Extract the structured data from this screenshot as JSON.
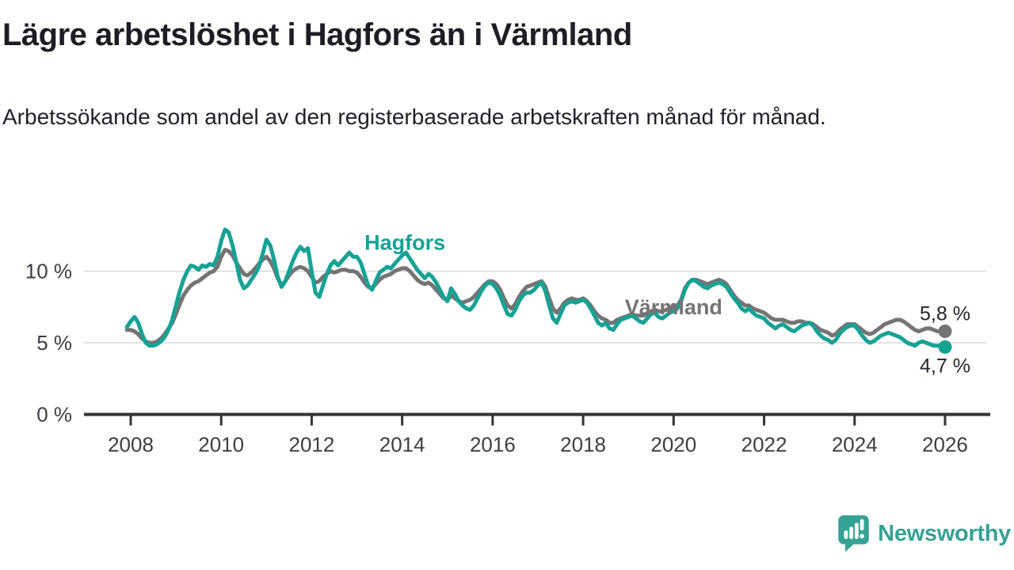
{
  "header": {
    "title": "Lägre arbetslöshet i Hagfors än i Värmland",
    "subtitle": "Arbetssökande som andel av den registerbaserade arbetskraften månad för månad."
  },
  "chart_data": {
    "type": "line",
    "title": "Lägre arbetslöshet i Hagfors än i Värmland",
    "xlabel": "",
    "ylabel": "",
    "x_unit": "monthly",
    "x_start": 2007.9167,
    "x_range": [
      2007.9167,
      2026.0
    ],
    "ylim": [
      0,
      13.5
    ],
    "grid": "horizontal",
    "legend_position": "inline-labels",
    "x_ticks": [
      2008,
      2010,
      2012,
      2014,
      2016,
      2018,
      2020,
      2022,
      2024,
      2026
    ],
    "y_ticks": [
      {
        "value": 0,
        "label": "0 %"
      },
      {
        "value": 5,
        "label": "5 %"
      },
      {
        "value": 10,
        "label": "10 %"
      }
    ],
    "series": [
      {
        "name": "Värmland",
        "color": "#747474",
        "end_label": "5,8 %",
        "end_label_position": "above",
        "values": [
          5.9,
          5.9,
          5.8,
          5.6,
          5.3,
          5.1,
          5.0,
          5.0,
          5.1,
          5.3,
          5.6,
          6.0,
          6.4,
          7.0,
          7.7,
          8.3,
          8.7,
          9.0,
          9.2,
          9.3,
          9.5,
          9.7,
          9.9,
          10.0,
          10.3,
          11.0,
          11.5,
          11.4,
          11.1,
          10.6,
          10.2,
          9.8,
          9.7,
          9.9,
          10.2,
          10.5,
          10.8,
          11.0,
          10.7,
          10.2,
          9.5,
          9.0,
          9.3,
          9.7,
          10.0,
          10.2,
          10.3,
          10.2,
          10.0,
          9.6,
          9.2,
          9.3,
          9.6,
          9.8,
          10.0,
          9.9,
          10.0,
          10.1,
          10.1,
          10.0,
          10.0,
          9.9,
          9.6,
          9.2,
          8.9,
          8.8,
          9.1,
          9.4,
          9.6,
          9.7,
          9.8,
          10.0,
          10.1,
          10.2,
          10.2,
          10.0,
          9.7,
          9.4,
          9.2,
          9.1,
          9.2,
          9.0,
          8.7,
          8.4,
          8.1,
          8.0,
          8.3,
          8.1,
          7.9,
          7.8,
          7.9,
          8.0,
          8.2,
          8.5,
          8.8,
          9.1,
          9.3,
          9.3,
          9.1,
          8.7,
          8.1,
          7.6,
          7.4,
          7.7,
          8.2,
          8.6,
          8.9,
          9.0,
          9.1,
          9.2,
          9.3,
          8.9,
          8.1,
          7.4,
          7.1,
          7.4,
          7.8,
          8.0,
          8.1,
          8.0,
          8.0,
          8.1,
          7.9,
          7.6,
          7.2,
          6.9,
          6.7,
          6.6,
          6.4,
          6.4,
          6.6,
          6.7,
          6.8,
          6.9,
          7.0,
          6.9,
          6.9,
          6.9,
          7.0,
          7.2,
          7.3,
          7.2,
          7.2,
          7.3,
          7.4,
          7.5,
          7.6,
          8.0,
          8.8,
          9.2,
          9.4,
          9.4,
          9.3,
          9.2,
          9.1,
          9.2,
          9.3,
          9.4,
          9.3,
          9.1,
          8.7,
          8.3,
          8.0,
          7.8,
          7.6,
          7.6,
          7.4,
          7.3,
          7.2,
          7.1,
          6.9,
          6.7,
          6.6,
          6.6,
          6.6,
          6.5,
          6.4,
          6.4,
          6.5,
          6.5,
          6.4,
          6.4,
          6.3,
          6.1,
          5.9,
          5.8,
          5.7,
          5.5,
          5.6,
          5.9,
          6.1,
          6.3,
          6.3,
          6.3,
          6.1,
          5.9,
          5.7,
          5.6,
          5.7,
          5.9,
          6.1,
          6.3,
          6.4,
          6.5,
          6.6,
          6.6,
          6.5,
          6.3,
          6.1,
          5.9,
          5.8,
          5.9,
          6.0,
          6.0,
          5.9,
          5.8,
          5.8,
          5.8
        ]
      },
      {
        "name": "Hagfors",
        "color": "#16a294",
        "end_label": "4,7 %",
        "end_label_position": "below",
        "values": [
          6.1,
          6.5,
          6.8,
          6.4,
          5.6,
          5.0,
          4.8,
          4.8,
          4.9,
          5.1,
          5.4,
          5.9,
          6.6,
          7.6,
          8.6,
          9.4,
          10.0,
          10.4,
          10.3,
          10.1,
          10.4,
          10.3,
          10.5,
          10.4,
          11.0,
          12.1,
          12.9,
          12.7,
          11.8,
          10.6,
          9.4,
          8.8,
          9.0,
          9.4,
          9.8,
          10.3,
          11.2,
          12.2,
          11.8,
          10.8,
          9.6,
          8.9,
          9.3,
          10.0,
          10.7,
          11.3,
          11.7,
          11.4,
          11.6,
          10.0,
          8.5,
          8.2,
          9.0,
          9.8,
          10.4,
          10.7,
          10.4,
          10.7,
          11.0,
          11.3,
          11.0,
          11.0,
          10.6,
          9.8,
          9.0,
          8.7,
          9.3,
          9.9,
          10.1,
          10.3,
          10.2,
          10.5,
          10.8,
          11.1,
          11.3,
          10.9,
          10.5,
          10.1,
          9.8,
          9.5,
          9.8,
          9.6,
          9.2,
          8.7,
          8.2,
          7.9,
          8.8,
          8.4,
          7.9,
          7.6,
          7.4,
          7.3,
          7.6,
          8.1,
          8.6,
          9.0,
          9.2,
          9.1,
          8.8,
          8.3,
          7.6,
          7.0,
          6.9,
          7.3,
          7.9,
          8.3,
          8.5,
          8.5,
          8.7,
          9.0,
          9.2,
          8.6,
          7.6,
          6.7,
          6.4,
          7.0,
          7.6,
          7.8,
          7.9,
          7.8,
          7.9,
          8.0,
          7.8,
          7.4,
          6.9,
          6.4,
          6.2,
          6.4,
          6.0,
          5.9,
          6.3,
          6.6,
          6.7,
          6.8,
          6.9,
          6.7,
          6.5,
          6.4,
          6.7,
          7.0,
          7.1,
          6.8,
          6.7,
          6.9,
          7.1,
          7.2,
          7.4,
          7.9,
          8.7,
          9.2,
          9.4,
          9.3,
          9.1,
          8.9,
          8.8,
          9.0,
          9.1,
          9.2,
          9.1,
          8.9,
          8.5,
          8.1,
          7.8,
          7.4,
          7.2,
          7.4,
          7.1,
          6.9,
          6.8,
          6.7,
          6.4,
          6.2,
          6.0,
          6.2,
          6.3,
          6.1,
          5.9,
          5.8,
          6.0,
          6.2,
          6.3,
          6.4,
          6.2,
          5.8,
          5.5,
          5.3,
          5.2,
          5.0,
          5.2,
          5.6,
          5.9,
          6.1,
          6.2,
          6.2,
          5.9,
          5.5,
          5.2,
          5.0,
          5.1,
          5.3,
          5.5,
          5.6,
          5.7,
          5.6,
          5.5,
          5.4,
          5.2,
          5.0,
          4.9,
          4.8,
          5.0,
          5.1,
          5.0,
          4.9,
          4.8,
          4.8,
          4.8,
          4.7
        ]
      }
    ],
    "annotations": [
      {
        "text": "Hagfors",
        "x": 2014.06,
        "y": 11.5,
        "color": "#16a294"
      },
      {
        "text": "Värmland",
        "x": 2020.0,
        "y": 7.0,
        "color": "#747474"
      }
    ],
    "colors": {
      "grid": "#d9d9d9",
      "axis": "#333333",
      "axis_text": "#3d3d42"
    }
  },
  "footer": {
    "brand": "Newsworthy",
    "brand_color": "#35a294",
    "logo_icon": "bar-chart-speech-bubble"
  }
}
